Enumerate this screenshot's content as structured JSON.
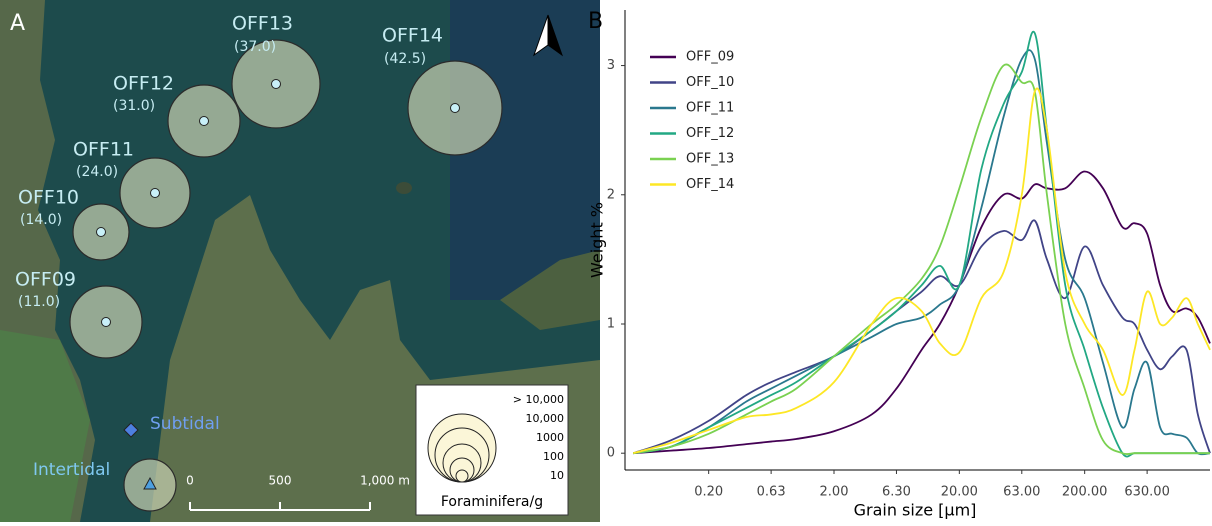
{
  "map": {
    "panel": "A",
    "stations": [
      {
        "name": "OFF13",
        "label": "(37.0)"
      },
      {
        "name": "OFF14",
        "label": "(42.5)"
      },
      {
        "name": "OFF12",
        "label": "(31.0)"
      },
      {
        "name": "OFF11",
        "label": "(24.0)"
      },
      {
        "name": "OFF10",
        "label": "(14.0)"
      },
      {
        "name": "OFF09",
        "label": "(11.0)"
      }
    ],
    "subtidal": "Subtidal",
    "intertidal": "Intertidal",
    "scale": [
      "0",
      "500",
      "1,000 m"
    ],
    "legend": {
      "classes": [
        "> 10,000",
        "10,000",
        "1000",
        "100",
        "10"
      ],
      "title": "Foraminifera/g"
    }
  },
  "chart_data": {
    "type": "line",
    "panel": "B",
    "x_label": "Grain size [µm]",
    "y_label": "Weight %",
    "log_x": true,
    "legend_position": "upper left",
    "xlim": [
      0.043,
      2000
    ],
    "ylim": [
      -0.13,
      3.43
    ],
    "xticks": [
      {
        "value": 0.2,
        "label": "0.20"
      },
      {
        "value": 0.63,
        "label": "0.63"
      },
      {
        "value": 2,
        "label": "2.00"
      },
      {
        "value": 6.3,
        "label": "6.30"
      },
      {
        "value": 20,
        "label": "20.00"
      },
      {
        "value": 63,
        "label": "63.00"
      },
      {
        "value": 200,
        "label": "200.00"
      },
      {
        "value": 630,
        "label": "630.00"
      }
    ],
    "yticks": [
      0,
      1,
      2,
      3
    ],
    "x": [
      0.05,
      0.1,
      0.2,
      0.4,
      0.63,
      1,
      2,
      4,
      6.3,
      10,
      14,
      20,
      30,
      45,
      63,
      80,
      100,
      140,
      200,
      280,
      400,
      500,
      630,
      800,
      1000,
      1300,
      1600,
      2000
    ],
    "series": [
      {
        "name": "OFF_09",
        "color": "#440154",
        "values": [
          0,
          0.02,
          0.04,
          0.07,
          0.09,
          0.11,
          0.17,
          0.3,
          0.5,
          0.8,
          1.0,
          1.3,
          1.75,
          2.0,
          1.97,
          2.08,
          2.05,
          2.05,
          2.18,
          2.05,
          1.75,
          1.78,
          1.7,
          1.3,
          1.1,
          1.12,
          1.05,
          0.85
        ]
      },
      {
        "name": "OFF_10",
        "color": "#414487",
        "values": [
          0,
          0.1,
          0.25,
          0.45,
          0.55,
          0.63,
          0.75,
          0.95,
          1.1,
          1.25,
          1.37,
          1.3,
          1.6,
          1.72,
          1.65,
          1.8,
          1.5,
          1.2,
          1.6,
          1.3,
          1.05,
          1.0,
          0.8,
          0.65,
          0.75,
          0.8,
          0.3,
          0
        ]
      },
      {
        "name": "OFF_11",
        "color": "#2a788e",
        "values": [
          0,
          0.05,
          0.2,
          0.4,
          0.5,
          0.6,
          0.75,
          0.9,
          1.0,
          1.05,
          1.15,
          1.3,
          1.9,
          2.6,
          3.05,
          3.05,
          2.4,
          1.5,
          1.2,
          0.7,
          0.2,
          0.5,
          0.7,
          0.2,
          0.15,
          0.12,
          0,
          0
        ]
      },
      {
        "name": "OFF_12",
        "color": "#22a884",
        "values": [
          0,
          0.05,
          0.2,
          0.35,
          0.45,
          0.55,
          0.75,
          0.95,
          1.1,
          1.3,
          1.45,
          1.3,
          2.2,
          2.7,
          2.95,
          3.25,
          2.5,
          1.3,
          0.8,
          0.35,
          0,
          0,
          0,
          0,
          0,
          0,
          0,
          0
        ]
      },
      {
        "name": "OFF_13",
        "color": "#7ad151",
        "values": [
          0,
          0.05,
          0.15,
          0.3,
          0.4,
          0.5,
          0.75,
          1.0,
          1.15,
          1.35,
          1.6,
          2.05,
          2.6,
          3.0,
          2.87,
          2.8,
          2.0,
          1.0,
          0.5,
          0.1,
          0,
          0,
          0,
          0,
          0,
          0,
          0,
          0
        ]
      },
      {
        "name": "OFF_14",
        "color": "#fde725",
        "values": [
          0,
          0.08,
          0.18,
          0.28,
          0.3,
          0.35,
          0.55,
          1.0,
          1.2,
          1.1,
          0.85,
          0.78,
          1.2,
          1.4,
          2.0,
          2.8,
          2.5,
          1.4,
          1.0,
          0.8,
          0.45,
          0.8,
          1.25,
          1.0,
          1.05,
          1.2,
          1.0,
          0.8
        ]
      }
    ]
  }
}
